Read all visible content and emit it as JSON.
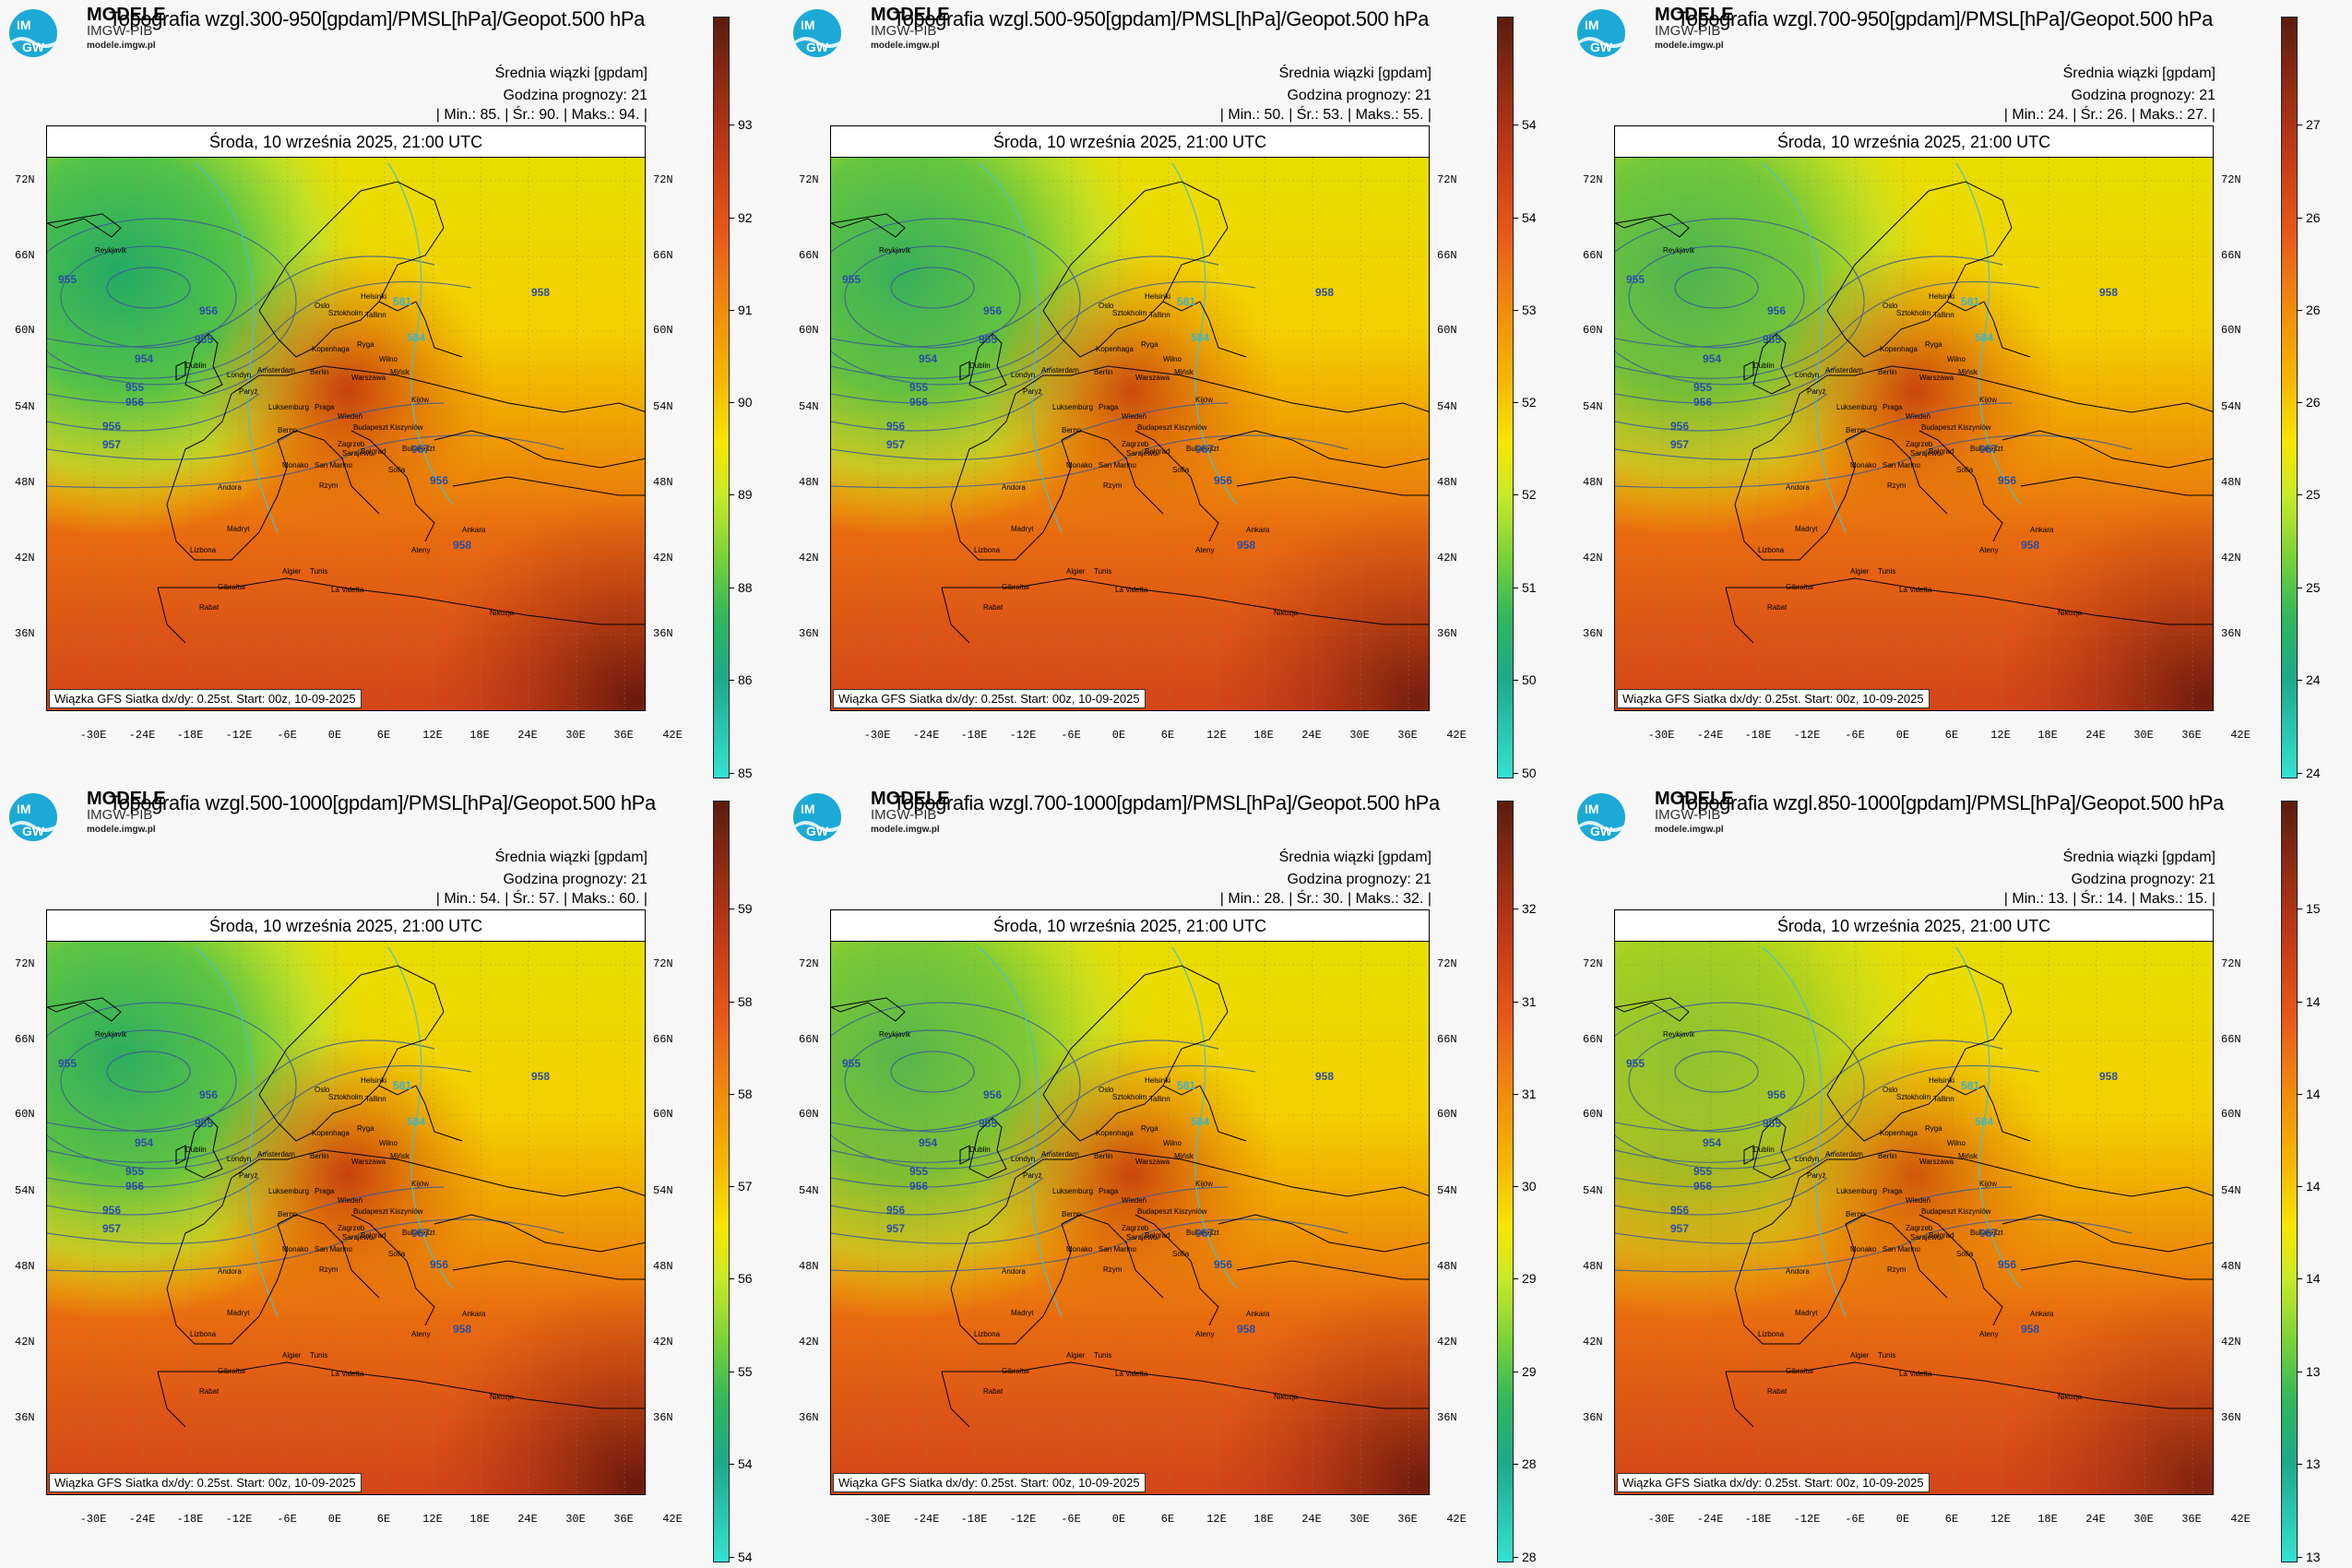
{
  "brand": {
    "name": "MODELE",
    "org": "IMGW-PIB",
    "url": "modele.imgw.pl",
    "logo_text": "IM GW"
  },
  "common": {
    "date_text": "Środa, 10 września 2025, 21:00 UTC",
    "info_line1": "Średnia wiązki [gpdam]",
    "info_line2": "Godzina prognozy: 21",
    "footnote": "Wiązka GFS Siatka dx/dy: 0.25st. Start: 00z, 10-09-2025",
    "lat_labels": [
      "72N",
      "66N",
      "60N",
      "54N",
      "48N",
      "42N",
      "36N"
    ],
    "lon_labels": [
      "-30E",
      "-24E",
      "-18E",
      "-12E",
      "-6E",
      "0E",
      "6E",
      "12E",
      "18E",
      "24E",
      "30E",
      "36E",
      "42E"
    ],
    "cities": [
      "Reykjavik",
      "Oslo",
      "Sztokholm",
      "Helsinki",
      "Tallinn",
      "Ryga",
      "Kopenhaga",
      "Wilno",
      "Mińsk",
      "Dublin",
      "Londyn",
      "Amsterdam",
      "Berlin",
      "Warszawa",
      "Kijów",
      "Paryż",
      "Luksemburg",
      "Praga",
      "Wiedeń",
      "Budapeszt",
      "Kiszyniów",
      "Berno",
      "Zagrzeb",
      "Belgrad",
      "Bukareszt",
      "Monako",
      "San Marino",
      "Sarajewo",
      "Sofia",
      "Andora",
      "Rzym",
      "Madryt",
      "Lizbona",
      "Ateny",
      "Ankara",
      "Tunis",
      "Algier",
      "Gibraltar",
      "La Valetta",
      "Rabat",
      "Nikozja"
    ],
    "isolines": [
      "955",
      "956",
      "954",
      "955",
      "955",
      "956",
      "956",
      "957",
      "958",
      "957",
      "956",
      "958",
      "581",
      "584"
    ]
  },
  "panels": [
    {
      "title": "Topografia wzgl.300-950[gpdam]/PMSL[hPa]/Geopot.500 hPa",
      "min": "85.",
      "avg": "90.",
      "max": "94.",
      "colorbar_ticks": [
        "93",
        "92",
        "91",
        "90",
        "89",
        "88",
        "86",
        "85"
      ]
    },
    {
      "title": "Topografia wzgl.500-950[gpdam]/PMSL[hPa]/Geopot.500 hPa",
      "min": "50.",
      "avg": "53.",
      "max": "55.",
      "colorbar_ticks": [
        "54",
        "54",
        "53",
        "52",
        "52",
        "51",
        "50",
        "50"
      ]
    },
    {
      "title": "Topografia wzgl.700-950[gpdam]/PMSL[hPa]/Geopot.500 hPa",
      "min": "24.",
      "avg": "26.",
      "max": "27.",
      "colorbar_ticks": [
        "27",
        "26",
        "26",
        "26",
        "25",
        "25",
        "24",
        "24"
      ]
    },
    {
      "title": "Topografia wzgl.500-1000[gpdam]/PMSL[hPa]/Geopot.500 hPa",
      "min": "54.",
      "avg": "57.",
      "max": "60.",
      "colorbar_ticks": [
        "59",
        "58",
        "58",
        "57",
        "56",
        "55",
        "54",
        "54"
      ]
    },
    {
      "title": "Topografia wzgl.700-1000[gpdam]/PMSL[hPa]/Geopot.500 hPa",
      "min": "28.",
      "avg": "30.",
      "max": "32.",
      "colorbar_ticks": [
        "32",
        "31",
        "31",
        "30",
        "29",
        "29",
        "28",
        "28"
      ]
    },
    {
      "title": "Topografia wzgl.850-1000[gpdam]/PMSL[hPa]/Geopot.500 hPa",
      "min": "13.",
      "avg": "14.",
      "max": "15.",
      "colorbar_ticks": [
        "15",
        "14",
        "14",
        "14",
        "14",
        "13",
        "13",
        "13"
      ]
    }
  ],
  "labels": {
    "min": "Min.:",
    "avg": "Śr.:",
    "max": "Maks.:"
  }
}
